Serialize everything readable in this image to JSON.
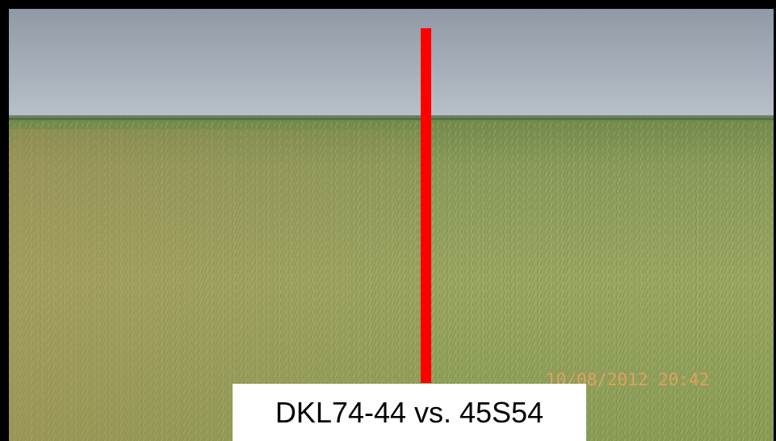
{
  "caption": "DKL74-44 vs. 45S54",
  "timestamp": "10/08/2012 20:42"
}
